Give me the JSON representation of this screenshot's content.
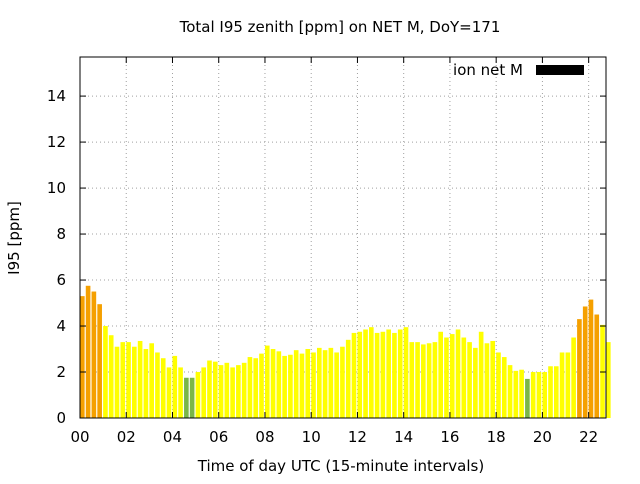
{
  "chart_data": {
    "type": "bar",
    "title": "Total I95 zenith [ppm] on NET M, DoY=171",
    "xlabel": "Time of day UTC (15-minute intervals)",
    "ylabel": "I95 [ppm]",
    "xlim": [
      0,
      22.75
    ],
    "ylim": [
      0,
      15.7
    ],
    "grid": true,
    "legend": {
      "position": "top-right",
      "entries": [
        "ion net M"
      ]
    },
    "x_ticks": [
      {
        "value": 0,
        "label": "00"
      },
      {
        "value": 2,
        "label": "02"
      },
      {
        "value": 4,
        "label": "04"
      },
      {
        "value": 6,
        "label": "06"
      },
      {
        "value": 8,
        "label": "08"
      },
      {
        "value": 10,
        "label": "10"
      },
      {
        "value": 12,
        "label": "12"
      },
      {
        "value": 14,
        "label": "14"
      },
      {
        "value": 16,
        "label": "16"
      },
      {
        "value": 18,
        "label": "18"
      },
      {
        "value": 20,
        "label": "20"
      },
      {
        "value": 22,
        "label": "22"
      }
    ],
    "y_ticks": [
      {
        "value": 0,
        "label": "0"
      },
      {
        "value": 2,
        "label": "2"
      },
      {
        "value": 4,
        "label": "4"
      },
      {
        "value": 6,
        "label": "6"
      },
      {
        "value": 8,
        "label": "8"
      },
      {
        "value": 10,
        "label": "10"
      },
      {
        "value": 12,
        "label": "12"
      },
      {
        "value": 14,
        "label": "14"
      }
    ],
    "bar_width": 0.2,
    "color_thresholds": {
      "green_below": 2.0,
      "yellow_below": 4.2
    },
    "colors": {
      "green": "#7ab648",
      "yellow": "#ffff00",
      "orange": "#f5a000",
      "legend": "#000000"
    },
    "values": [
      5.3,
      5.75,
      5.5,
      4.95,
      4.0,
      3.6,
      3.1,
      3.3,
      3.3,
      3.1,
      3.35,
      3.0,
      3.25,
      2.85,
      2.6,
      2.2,
      2.7,
      2.2,
      1.75,
      1.75,
      2.0,
      2.2,
      2.5,
      2.45,
      2.3,
      2.4,
      2.2,
      2.3,
      2.4,
      2.65,
      2.6,
      2.8,
      3.15,
      3.0,
      2.9,
      2.7,
      2.75,
      2.95,
      2.8,
      3.0,
      2.85,
      3.05,
      2.95,
      3.05,
      2.85,
      3.1,
      3.4,
      3.7,
      3.75,
      3.85,
      3.95,
      3.7,
      3.75,
      3.85,
      3.7,
      3.85,
      3.95,
      3.3,
      3.3,
      3.2,
      3.25,
      3.3,
      3.75,
      3.5,
      3.65,
      3.85,
      3.5,
      3.3,
      3.05,
      3.75,
      3.25,
      3.35,
      2.85,
      2.65,
      2.3,
      2.05,
      2.1,
      1.7,
      2.0,
      2.0,
      2.0,
      2.25,
      2.25,
      2.85,
      2.85,
      3.5,
      4.3,
      4.85,
      5.15,
      4.5,
      4.05,
      3.3
    ]
  }
}
